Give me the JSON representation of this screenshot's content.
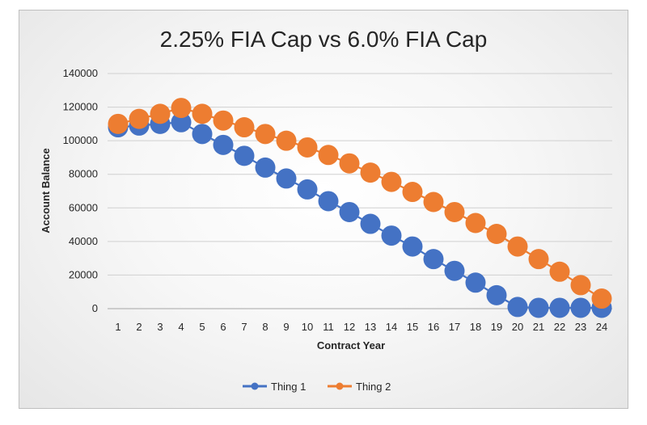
{
  "chart_data": {
    "type": "scatter",
    "title": "2.25% FIA Cap vs 6.0% FIA Cap",
    "xlabel": "Contract Year",
    "ylabel": "Account Balance",
    "x": [
      1,
      2,
      3,
      4,
      5,
      6,
      7,
      8,
      9,
      10,
      11,
      12,
      13,
      14,
      15,
      16,
      17,
      18,
      19,
      20,
      21,
      22,
      23,
      24
    ],
    "ylim": [
      0,
      140000
    ],
    "yticks": [
      0,
      20000,
      40000,
      60000,
      80000,
      100000,
      120000,
      140000
    ],
    "grid": true,
    "legend_position": "bottom",
    "series": [
      {
        "name": "Thing 1",
        "color": "#4472C4",
        "values": [
          108000,
          109000,
          110000,
          111000,
          104000,
          97500,
          91000,
          84000,
          77500,
          71000,
          64000,
          57500,
          50500,
          43500,
          37000,
          29500,
          22500,
          15500,
          8000,
          1000,
          500,
          500,
          500,
          500
        ]
      },
      {
        "name": "Thing 2",
        "color": "#ED7D31",
        "values": [
          110000,
          113000,
          116000,
          119500,
          116000,
          112000,
          108000,
          104000,
          100000,
          96000,
          91500,
          86500,
          81000,
          75500,
          69500,
          63500,
          57500,
          51000,
          44500,
          37000,
          29500,
          22000,
          14000,
          6000
        ]
      }
    ]
  }
}
